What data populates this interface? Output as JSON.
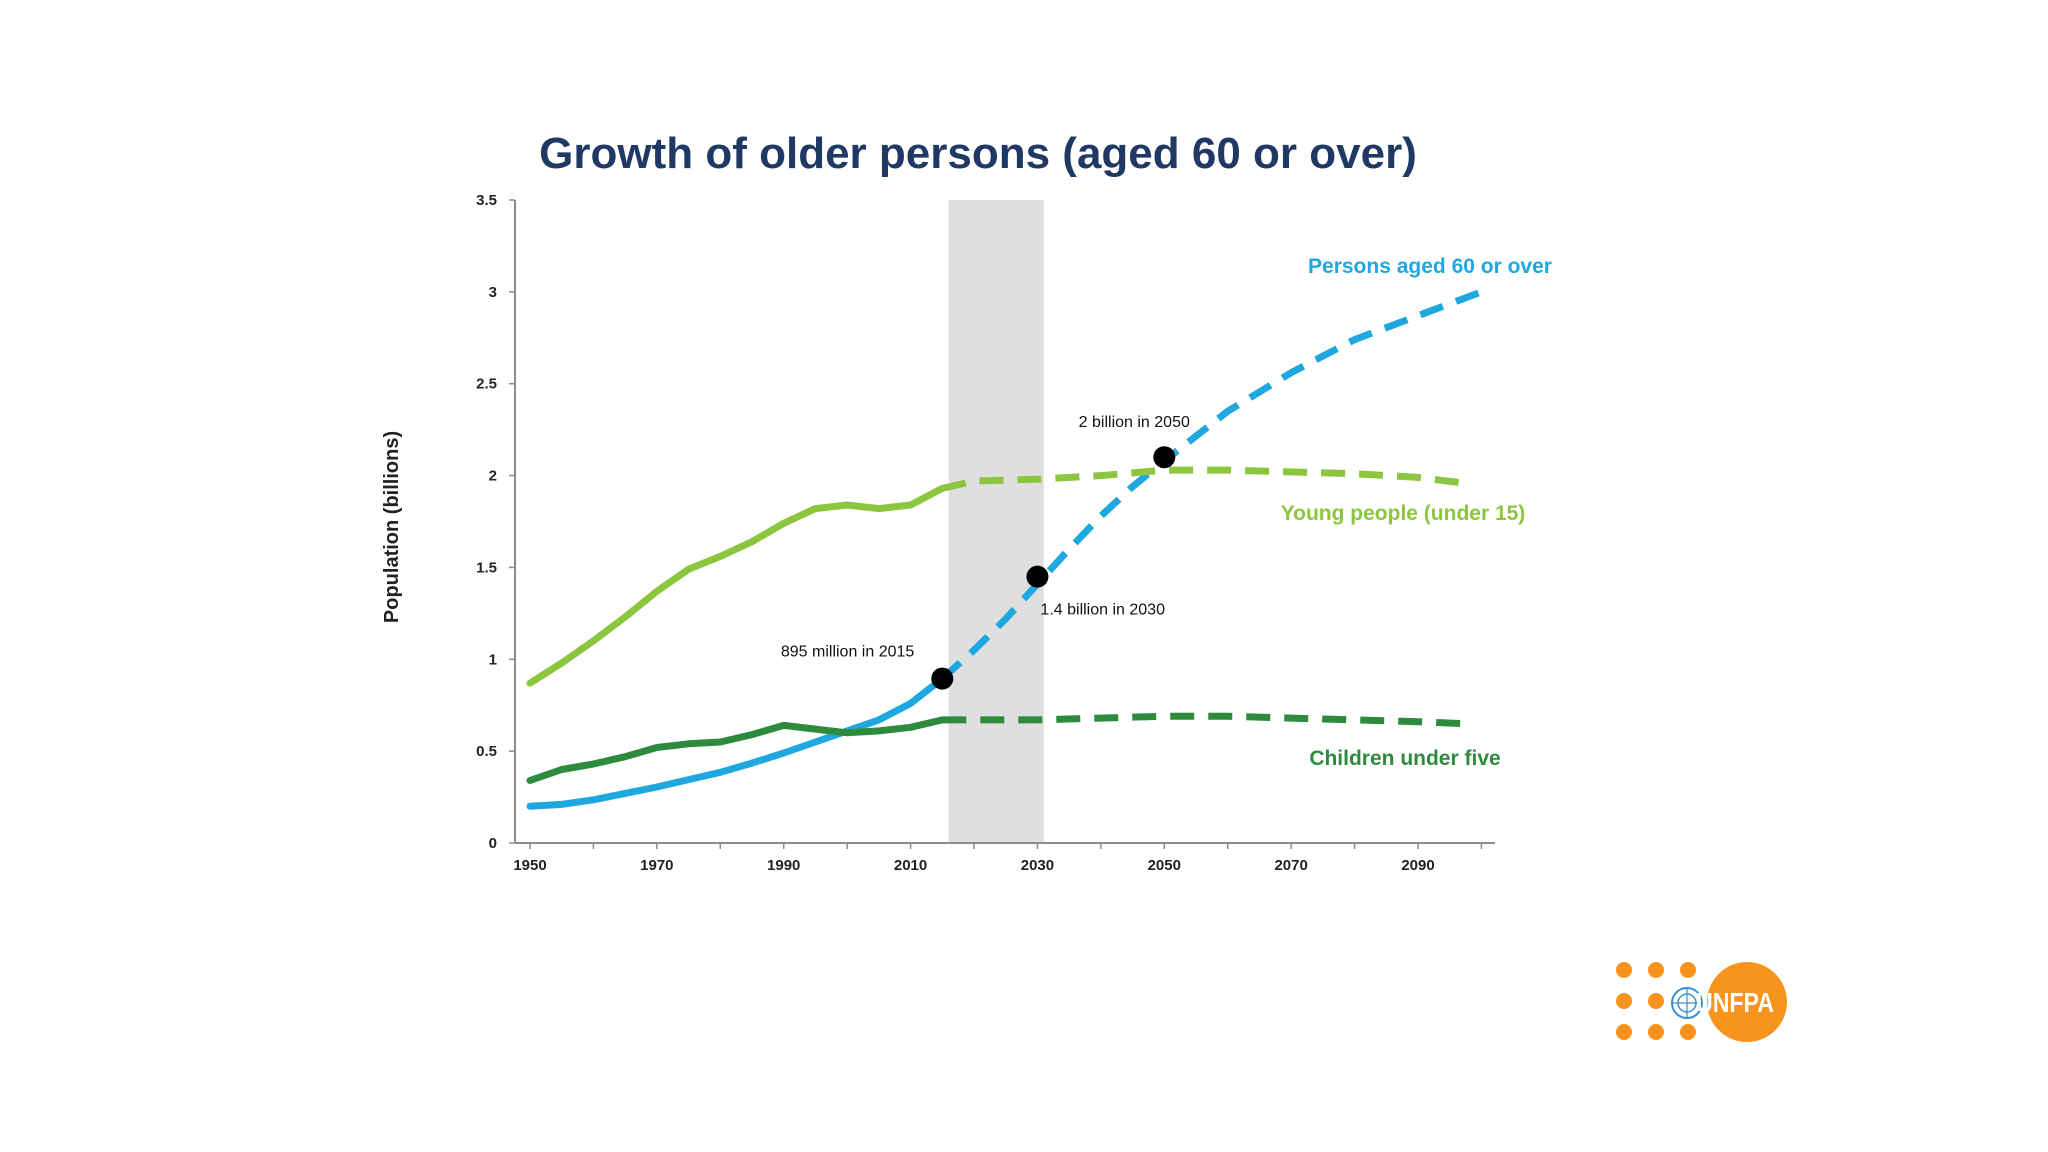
{
  "colors": {
    "older": "#1fa8df",
    "young": "#8cc63f",
    "children": "#2e8b3d",
    "title": "#1f3864",
    "projection_band": "#d9d9d9",
    "logo_orange": "#f7941d"
  },
  "logo": {
    "text": "UNFPA",
    "icon": "un-emblem-icon"
  },
  "chart_data": {
    "type": "line",
    "title": "Growth of older persons (aged 60 or over)",
    "ylabel": "Population (billions)",
    "xlabel": "",
    "xlim": [
      1947.5,
      2105
    ],
    "ylim": [
      0,
      3.5
    ],
    "x_ticks": [
      1950,
      1970,
      1990,
      2010,
      2030,
      2050,
      2070,
      2090
    ],
    "y_ticks": [
      "0",
      "0.5",
      "1",
      "1.5",
      "2",
      "2.5",
      "3",
      "3.5"
    ],
    "projection_band": [
      2016,
      2031
    ],
    "series": [
      {
        "name": "Persons aged 60 or over",
        "color_key": "older",
        "observed": [
          [
            1950,
            0.2
          ],
          [
            1955,
            0.21
          ],
          [
            1960,
            0.235
          ],
          [
            1965,
            0.27
          ],
          [
            1970,
            0.305
          ],
          [
            1975,
            0.345
          ],
          [
            1980,
            0.385
          ],
          [
            1985,
            0.435
          ],
          [
            1990,
            0.49
          ],
          [
            1995,
            0.55
          ],
          [
            2000,
            0.61
          ],
          [
            2005,
            0.67
          ],
          [
            2010,
            0.76
          ],
          [
            2015,
            0.895
          ]
        ],
        "projected": [
          [
            2015,
            0.895
          ],
          [
            2020,
            1.05
          ],
          [
            2025,
            1.22
          ],
          [
            2030,
            1.41
          ],
          [
            2035,
            1.6
          ],
          [
            2040,
            1.78
          ],
          [
            2045,
            1.94
          ],
          [
            2050,
            2.08
          ],
          [
            2060,
            2.35
          ],
          [
            2070,
            2.56
          ],
          [
            2080,
            2.74
          ],
          [
            2090,
            2.87
          ],
          [
            2100,
            3.0
          ]
        ]
      },
      {
        "name": "Young people (under 15)",
        "color_key": "young",
        "observed": [
          [
            1950,
            0.87
          ],
          [
            1955,
            0.98
          ],
          [
            1960,
            1.1
          ],
          [
            1965,
            1.23
          ],
          [
            1970,
            1.37
          ],
          [
            1975,
            1.49
          ],
          [
            1980,
            1.56
          ],
          [
            1985,
            1.64
          ],
          [
            1990,
            1.74
          ],
          [
            1995,
            1.82
          ],
          [
            2000,
            1.84
          ],
          [
            2005,
            1.82
          ],
          [
            2010,
            1.84
          ],
          [
            2015,
            1.93
          ]
        ],
        "projected": [
          [
            2015,
            1.93
          ],
          [
            2020,
            1.97
          ],
          [
            2030,
            1.98
          ],
          [
            2040,
            2.0
          ],
          [
            2050,
            2.03
          ],
          [
            2060,
            2.03
          ],
          [
            2070,
            2.02
          ],
          [
            2080,
            2.01
          ],
          [
            2090,
            1.99
          ],
          [
            2097,
            1.96
          ]
        ]
      },
      {
        "name": "Children under five",
        "color_key": "children",
        "observed": [
          [
            1950,
            0.34
          ],
          [
            1955,
            0.4
          ],
          [
            1960,
            0.43
          ],
          [
            1965,
            0.47
          ],
          [
            1970,
            0.52
          ],
          [
            1975,
            0.54
          ],
          [
            1980,
            0.55
          ],
          [
            1985,
            0.59
          ],
          [
            1990,
            0.64
          ],
          [
            1995,
            0.62
          ],
          [
            2000,
            0.6
          ],
          [
            2005,
            0.61
          ],
          [
            2010,
            0.63
          ],
          [
            2015,
            0.67
          ]
        ],
        "projected": [
          [
            2015,
            0.67
          ],
          [
            2020,
            0.67
          ],
          [
            2030,
            0.67
          ],
          [
            2040,
            0.68
          ],
          [
            2050,
            0.69
          ],
          [
            2060,
            0.69
          ],
          [
            2070,
            0.68
          ],
          [
            2080,
            0.67
          ],
          [
            2090,
            0.66
          ],
          [
            2097,
            0.65
          ]
        ]
      }
    ],
    "annotations": [
      {
        "text": "895 million in 2015",
        "x": 2015,
        "y": 0.895
      },
      {
        "text": "1.4 billion in 2030",
        "x": 2030,
        "y": 1.45
      },
      {
        "text": "2 billion in 2050",
        "x": 2050,
        "y": 2.1
      }
    ]
  }
}
